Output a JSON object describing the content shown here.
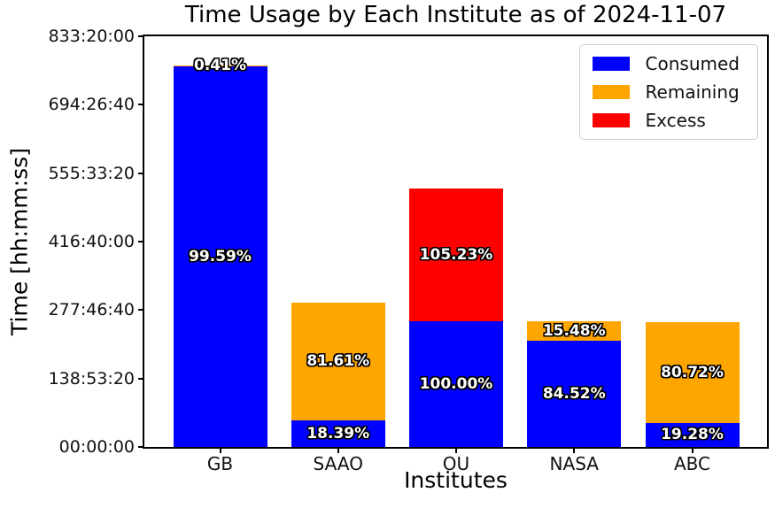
{
  "chart_data": {
    "type": "bar",
    "stacked": true,
    "title": "Time Usage by Each Institute as of 2024-11-07",
    "xlabel": "Institutes",
    "ylabel": "Time [hh:mm:ss]",
    "categories": [
      "GB",
      "SAAO",
      "OU",
      "NASA",
      "ABC"
    ],
    "grid": false,
    "y_axis": {
      "unit": "seconds",
      "ylim": [
        0,
        3000000
      ],
      "tick_interval": 500000,
      "tick_labels": [
        "00:00:00",
        "138:53:20",
        "277:46:40",
        "416:40:00",
        "555:33:20",
        "694:26:40",
        "833:20:00"
      ]
    },
    "legend": {
      "position": "upper right",
      "items": [
        {
          "label": "Consumed",
          "key": "consumed"
        },
        {
          "label": "Remaining",
          "key": "remaining"
        },
        {
          "label": "Excess",
          "key": "excess"
        }
      ]
    },
    "bars": [
      {
        "category": "GB",
        "segments": [
          {
            "series": "consumed",
            "seconds_est": 2778500,
            "label": "99.59%"
          },
          {
            "series": "remaining",
            "seconds_est": 11500,
            "label": "0.41%"
          }
        ]
      },
      {
        "category": "SAAO",
        "segments": [
          {
            "series": "consumed",
            "seconds_est": 194200,
            "label": "18.39%"
          },
          {
            "series": "remaining",
            "seconds_est": 861800,
            "label": "81.61%"
          }
        ]
      },
      {
        "category": "OU",
        "segments": [
          {
            "series": "consumed",
            "seconds_est": 918500,
            "label": "100.00%"
          },
          {
            "series": "excess",
            "seconds_est": 966500,
            "label": "105.23%"
          }
        ]
      },
      {
        "category": "NASA",
        "segments": [
          {
            "series": "consumed",
            "seconds_est": 776300,
            "label": "84.52%"
          },
          {
            "series": "remaining",
            "seconds_est": 142200,
            "label": "15.48%"
          }
        ]
      },
      {
        "category": "ABC",
        "segments": [
          {
            "series": "consumed",
            "seconds_est": 175800,
            "label": "19.28%"
          },
          {
            "series": "remaining",
            "seconds_est": 736200,
            "label": "80.72%"
          }
        ]
      }
    ]
  },
  "colors": {
    "consumed": "#0000ff",
    "remaining": "#ffa500",
    "excess": "#ff0000",
    "axis": "#000000",
    "legend_border": "#cccccc",
    "pct_text": "#ffffff",
    "background": "#ffffff"
  }
}
